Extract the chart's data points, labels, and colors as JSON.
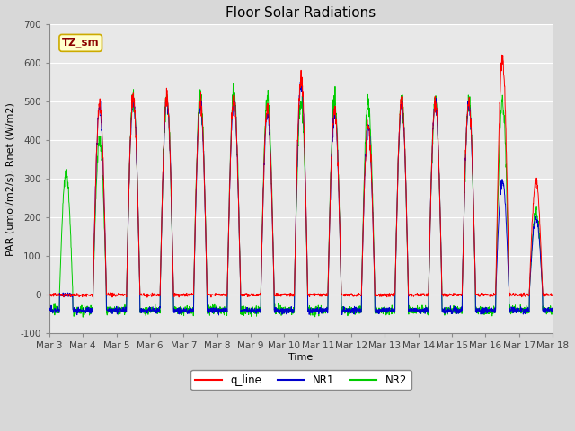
{
  "title": "Floor Solar Radiations",
  "xlabel": "Time",
  "ylabel": "PAR (umol/m2/s), Rnet (W/m2)",
  "ylim": [
    -100,
    700
  ],
  "yticks": [
    -100,
    0,
    100,
    200,
    300,
    400,
    500,
    600,
    700
  ],
  "annotation": "TZ_sm",
  "annotation_color": "#8B0000",
  "annotation_bg": "#FFFFCC",
  "annotation_border": "#CCAA00",
  "line_colors": {
    "q_line": "#FF0000",
    "NR1": "#0000CC",
    "NR2": "#00CC00"
  },
  "line_widths": {
    "q_line": 0.7,
    "NR1": 0.7,
    "NR2": 0.7
  },
  "fig_bg": "#D8D8D8",
  "plot_bg": "#E8E8E8",
  "n_days": 15,
  "start_day": 3,
  "points_per_day": 144,
  "title_fontsize": 11,
  "axis_fontsize": 8,
  "tick_fontsize": 7.5
}
